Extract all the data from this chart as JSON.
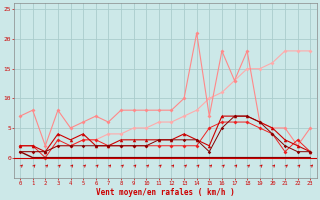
{
  "x": [
    0,
    1,
    2,
    3,
    4,
    5,
    6,
    7,
    8,
    9,
    10,
    11,
    12,
    13,
    14,
    15,
    16,
    17,
    18,
    19,
    20,
    21,
    22,
    23
  ],
  "line_gust": [
    7,
    8,
    2,
    8,
    5,
    6,
    7,
    6,
    8,
    8,
    8,
    8,
    8,
    10,
    21,
    7,
    18,
    13,
    18,
    6,
    5,
    5,
    2,
    5
  ],
  "line_trend": [
    1,
    1,
    1,
    2,
    2,
    3,
    3,
    4,
    4,
    5,
    5,
    6,
    6,
    7,
    8,
    10,
    11,
    13,
    15,
    15,
    16,
    18,
    18,
    18
  ],
  "line_med1": [
    2,
    2,
    0,
    3,
    2,
    3,
    3,
    2,
    2,
    2,
    2,
    2,
    2,
    2,
    2,
    5,
    6,
    6,
    6,
    5,
    4,
    1,
    3,
    1
  ],
  "line_med2": [
    2,
    2,
    1,
    4,
    3,
    4,
    2,
    2,
    3,
    3,
    3,
    3,
    3,
    4,
    3,
    2,
    7,
    7,
    7,
    6,
    5,
    3,
    2,
    1
  ],
  "line_low1": [
    1,
    1,
    1,
    2,
    2,
    2,
    2,
    2,
    2,
    2,
    2,
    3,
    3,
    3,
    3,
    1,
    5,
    7,
    7,
    6,
    4,
    2,
    1,
    1
  ],
  "line_zero": [
    1,
    0,
    0,
    0,
    0,
    0,
    0,
    0,
    0,
    0,
    0,
    0,
    0,
    0,
    0,
    0,
    0,
    0,
    0,
    0,
    0,
    0,
    0,
    0
  ],
  "bg_color": "#cce8e8",
  "grid_color": "#aacccc",
  "color_light_pink": "#ffaaaa",
  "color_mid_pink": "#ff8888",
  "color_red": "#ee2222",
  "color_dark_red": "#cc0000",
  "color_deep_red": "#880000",
  "xlabel": "Vent moyen/en rafales ( km/h )",
  "xlabel_color": "#cc0000",
  "tick_color": "#cc0000",
  "spine_color": "#888888",
  "hline_color": "#cc0000",
  "arrow_color": "#cc0000",
  "ylim": [
    -3.5,
    26
  ],
  "xlim": [
    -0.5,
    23.5
  ],
  "yticks": [
    0,
    5,
    10,
    15,
    20,
    25
  ]
}
